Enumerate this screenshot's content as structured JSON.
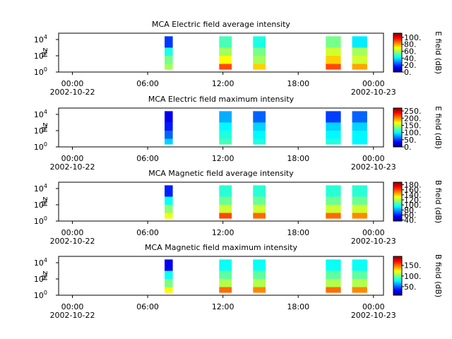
{
  "chart_data": [
    {
      "type": "spectrogram",
      "title": "MCA  Electric field average intensity",
      "ylabel": "Hz",
      "colorbar_label": "E field (dB)",
      "colormap": "jet",
      "log_y": true,
      "xlim": [
        -1.1,
        24.8
      ],
      "xticks": [
        {
          "value": 0,
          "label": "00:00"
        },
        {
          "value": 6,
          "label": "06:00"
        },
        {
          "value": 12,
          "label": "12:00"
        },
        {
          "value": 18,
          "label": "18:00"
        },
        {
          "value": 24,
          "label": "00:00"
        }
      ],
      "x_dates": [
        {
          "value": 0,
          "label": "2002-10-22"
        },
        {
          "value": 24,
          "label": "2002-10-23"
        }
      ],
      "ylim": [
        1,
        60000
      ],
      "yticks": [
        {
          "value": 1,
          "label": "10",
          "exp": "0"
        },
        {
          "value": 100,
          "label": "10",
          "exp": "2"
        },
        {
          "value": 10000,
          "label": "10",
          "exp": "4"
        }
      ],
      "clim": [
        0,
        112
      ],
      "cticks": [
        {
          "value": 0,
          "label": "0."
        },
        {
          "value": 20,
          "label": "20."
        },
        {
          "value": 40,
          "label": "40."
        },
        {
          "value": 60,
          "label": "60."
        },
        {
          "value": 80,
          "label": "80."
        },
        {
          "value": 100,
          "label": "100."
        }
      ],
      "bands": [
        2,
        10,
        100,
        1000,
        25000
      ],
      "blocks": [
        {
          "start": 7.35,
          "end": 8.0,
          "values": [
            60,
            55,
            45,
            20
          ]
        },
        {
          "start": 11.7,
          "end": 12.7,
          "values": [
            90,
            70,
            60,
            50
          ]
        },
        {
          "start": 14.4,
          "end": 15.4,
          "values": [
            75,
            60,
            55,
            45
          ]
        },
        {
          "start": 20.2,
          "end": 21.4,
          "values": [
            90,
            75,
            65,
            55
          ]
        },
        {
          "start": 22.3,
          "end": 23.5,
          "values": [
            80,
            65,
            60,
            40
          ]
        }
      ]
    },
    {
      "type": "spectrogram",
      "title": "MCA  Electric field maximum intensity",
      "ylabel": "Hz",
      "colorbar_label": "E field (dB)",
      "colormap": "jet",
      "log_y": true,
      "xlim": [
        -1.1,
        24.8
      ],
      "xticks": [
        {
          "value": 0,
          "label": "00:00"
        },
        {
          "value": 6,
          "label": "06:00"
        },
        {
          "value": 12,
          "label": "12:00"
        },
        {
          "value": 18,
          "label": "18:00"
        },
        {
          "value": 24,
          "label": "00:00"
        }
      ],
      "x_dates": [
        {
          "value": 0,
          "label": "2002-10-22"
        },
        {
          "value": 24,
          "label": "2002-10-23"
        }
      ],
      "ylim": [
        1,
        60000
      ],
      "yticks": [
        {
          "value": 1,
          "label": "10",
          "exp": "0"
        },
        {
          "value": 100,
          "label": "10",
          "exp": "2"
        },
        {
          "value": 10000,
          "label": "10",
          "exp": "4"
        }
      ],
      "clim": [
        0,
        270
      ],
      "cticks": [
        {
          "value": 0,
          "label": "0."
        },
        {
          "value": 50,
          "label": "50."
        },
        {
          "value": 100,
          "label": "100."
        },
        {
          "value": 150,
          "label": "150."
        },
        {
          "value": 200,
          "label": "200."
        },
        {
          "value": 250,
          "label": "250."
        }
      ],
      "bands": [
        2,
        10,
        100,
        1000,
        25000
      ],
      "blocks": [
        {
          "start": 7.35,
          "end": 8.0,
          "values": [
            90,
            60,
            40,
            30
          ]
        },
        {
          "start": 11.7,
          "end": 12.7,
          "values": [
            120,
            110,
            100,
            80
          ]
        },
        {
          "start": 14.4,
          "end": 15.4,
          "values": [
            110,
            100,
            90,
            60
          ]
        },
        {
          "start": 20.2,
          "end": 21.4,
          "values": [
            110,
            100,
            90,
            50
          ]
        },
        {
          "start": 22.3,
          "end": 23.5,
          "values": [
            100,
            100,
            90,
            60
          ]
        }
      ]
    },
    {
      "type": "spectrogram",
      "title": "MCA  Magnetic field average intensity",
      "ylabel": "Hz",
      "colorbar_label": "B field (dB)",
      "colormap": "jet",
      "log_y": true,
      "xlim": [
        -1.1,
        24.8
      ],
      "xticks": [
        {
          "value": 0,
          "label": "00:00"
        },
        {
          "value": 6,
          "label": "06:00"
        },
        {
          "value": 12,
          "label": "12:00"
        },
        {
          "value": 18,
          "label": "18:00"
        },
        {
          "value": 24,
          "label": "00:00"
        }
      ],
      "x_dates": [
        {
          "value": 0,
          "label": "2002-10-22"
        },
        {
          "value": 24,
          "label": "2002-10-23"
        }
      ],
      "ylim": [
        1,
        60000
      ],
      "yticks": [
        {
          "value": 1,
          "label": "10",
          "exp": "0"
        },
        {
          "value": 100,
          "label": "10",
          "exp": "2"
        },
        {
          "value": 10000,
          "label": "10",
          "exp": "4"
        }
      ],
      "clim": [
        36,
        190
      ],
      "cticks": [
        {
          "value": 40,
          "label": "40."
        },
        {
          "value": 60,
          "label": "60."
        },
        {
          "value": 80,
          "label": "80."
        },
        {
          "value": 100,
          "label": "100."
        },
        {
          "value": 120,
          "label": "120."
        },
        {
          "value": 140,
          "label": "140."
        },
        {
          "value": 160,
          "label": "160."
        },
        {
          "value": 180,
          "label": "180."
        }
      ],
      "bands": [
        2,
        10,
        100,
        1000,
        25000
      ],
      "blocks": [
        {
          "start": 7.35,
          "end": 8.0,
          "values": [
            130,
            115,
            95,
            60
          ]
        },
        {
          "start": 11.7,
          "end": 12.7,
          "values": [
            160,
            125,
            110,
            100
          ]
        },
        {
          "start": 14.4,
          "end": 15.4,
          "values": [
            155,
            125,
            110,
            100
          ]
        },
        {
          "start": 20.2,
          "end": 21.4,
          "values": [
            155,
            125,
            110,
            100
          ]
        },
        {
          "start": 22.3,
          "end": 23.5,
          "values": [
            150,
            125,
            110,
            100
          ]
        }
      ]
    },
    {
      "type": "spectrogram",
      "title": "MCA  Magnetic field maximum intensity",
      "ylabel": "Hz",
      "colorbar_label": "B field (dB)",
      "colormap": "jet",
      "log_y": true,
      "xlim": [
        -1.1,
        24.8
      ],
      "xticks": [
        {
          "value": 0,
          "label": "00:00"
        },
        {
          "value": 6,
          "label": "06:00"
        },
        {
          "value": 12,
          "label": "12:00"
        },
        {
          "value": 18,
          "label": "18:00"
        },
        {
          "value": 24,
          "label": "00:00"
        }
      ],
      "x_dates": [
        {
          "value": 0,
          "label": "2002-10-22"
        },
        {
          "value": 24,
          "label": "2002-10-23"
        }
      ],
      "ylim": [
        1,
        60000
      ],
      "yticks": [
        {
          "value": 1,
          "label": "10",
          "exp": "0"
        },
        {
          "value": 100,
          "label": "10",
          "exp": "2"
        },
        {
          "value": 10000,
          "label": "10",
          "exp": "4"
        }
      ],
      "clim": [
        10,
        192
      ],
      "cticks": [
        {
          "value": 50,
          "label": "50."
        },
        {
          "value": 100,
          "label": "100."
        },
        {
          "value": 150,
          "label": "150."
        }
      ],
      "bands": [
        2,
        10,
        100,
        1000,
        25000
      ],
      "blocks": [
        {
          "start": 7.35,
          "end": 8.0,
          "values": [
            125,
            100,
            80,
            30
          ]
        },
        {
          "start": 11.7,
          "end": 12.7,
          "values": [
            150,
            110,
            95,
            80
          ]
        },
        {
          "start": 14.4,
          "end": 15.4,
          "values": [
            145,
            110,
            95,
            80
          ]
        },
        {
          "start": 20.2,
          "end": 21.4,
          "values": [
            150,
            110,
            95,
            80
          ]
        },
        {
          "start": 22.3,
          "end": 23.5,
          "values": [
            145,
            110,
            95,
            80
          ]
        }
      ]
    }
  ]
}
